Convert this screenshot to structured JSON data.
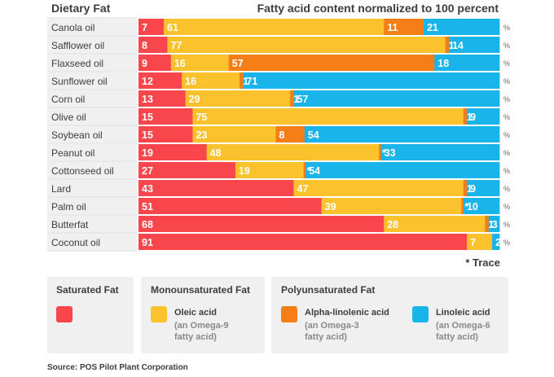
{
  "header": {
    "left_title": "Dietary Fat",
    "right_title": "Fatty acid content normalized to 100 percent"
  },
  "colors": {
    "saturated": "#f9464c",
    "oleic": "#fcc22d",
    "alpha_linolenic": "#f57f16",
    "linoleic": "#19b4ea"
  },
  "chart_data": {
    "type": "bar",
    "orientation": "horizontal",
    "stacked": true,
    "title": "Fatty acid content normalized to 100 percent",
    "unit": "%",
    "categories": [
      "Canola oil",
      "Safflower oil",
      "Flaxseed oil",
      "Sunflower oil",
      "Corn oil",
      "Olive oil",
      "Soybean oil",
      "Peanut oil",
      "Cottonseed oil",
      "Lard",
      "Palm oil",
      "Butterfat",
      "Coconut oil"
    ],
    "series": [
      {
        "name": "Saturated Fat",
        "values": [
          7,
          8,
          9,
          12,
          13,
          15,
          15,
          19,
          27,
          43,
          51,
          68,
          91
        ],
        "labels": [
          "7",
          "8",
          "9",
          "12",
          "13",
          "15",
          "15",
          "19",
          "27",
          "43",
          "51",
          "68",
          "91"
        ]
      },
      {
        "name": "Oleic acid",
        "values": [
          61,
          77,
          16,
          16,
          29,
          75,
          23,
          48,
          19,
          47,
          39,
          28,
          7
        ],
        "labels": [
          "61",
          "77",
          "16",
          "16",
          "29",
          "75",
          "23",
          "48",
          "19",
          "47",
          "39",
          "28",
          "7"
        ]
      },
      {
        "name": "Alpha-linolenic acid",
        "values": [
          11,
          1,
          57,
          1,
          1,
          1,
          8,
          0.6,
          0.6,
          1,
          0.6,
          1,
          0
        ],
        "labels": [
          "11",
          "1",
          "57",
          "1",
          "1",
          "1",
          "8",
          "*",
          "*",
          "1",
          "*",
          "1",
          ""
        ]
      },
      {
        "name": "Linoleic acid",
        "values": [
          21,
          14,
          18,
          71,
          57,
          9,
          54,
          33,
          54,
          9,
          10,
          3,
          2
        ],
        "labels": [
          "21",
          "14",
          "18",
          "71",
          "57",
          "9",
          "54",
          "33",
          "54",
          "9",
          "10",
          "3",
          "2"
        ]
      }
    ],
    "xlim": [
      0,
      100
    ]
  },
  "trace_note": "* Trace",
  "legend": {
    "saturated": {
      "title": "Saturated Fat"
    },
    "mono": {
      "title": "Monounsaturated Fat",
      "item": {
        "name": "Oleic acid",
        "desc": "(an Omega-9 fatty acid)"
      }
    },
    "poly": {
      "title": "Polyunsaturated Fat",
      "item1": {
        "name": "Alpha-linolenic acid",
        "desc": "(an Omega-3 fatty acid)"
      },
      "item2": {
        "name": "Linoleic acid",
        "desc": "(an Omega-6 fatty acid)"
      }
    }
  },
  "source": "Source: POS Pilot Plant Corporation"
}
